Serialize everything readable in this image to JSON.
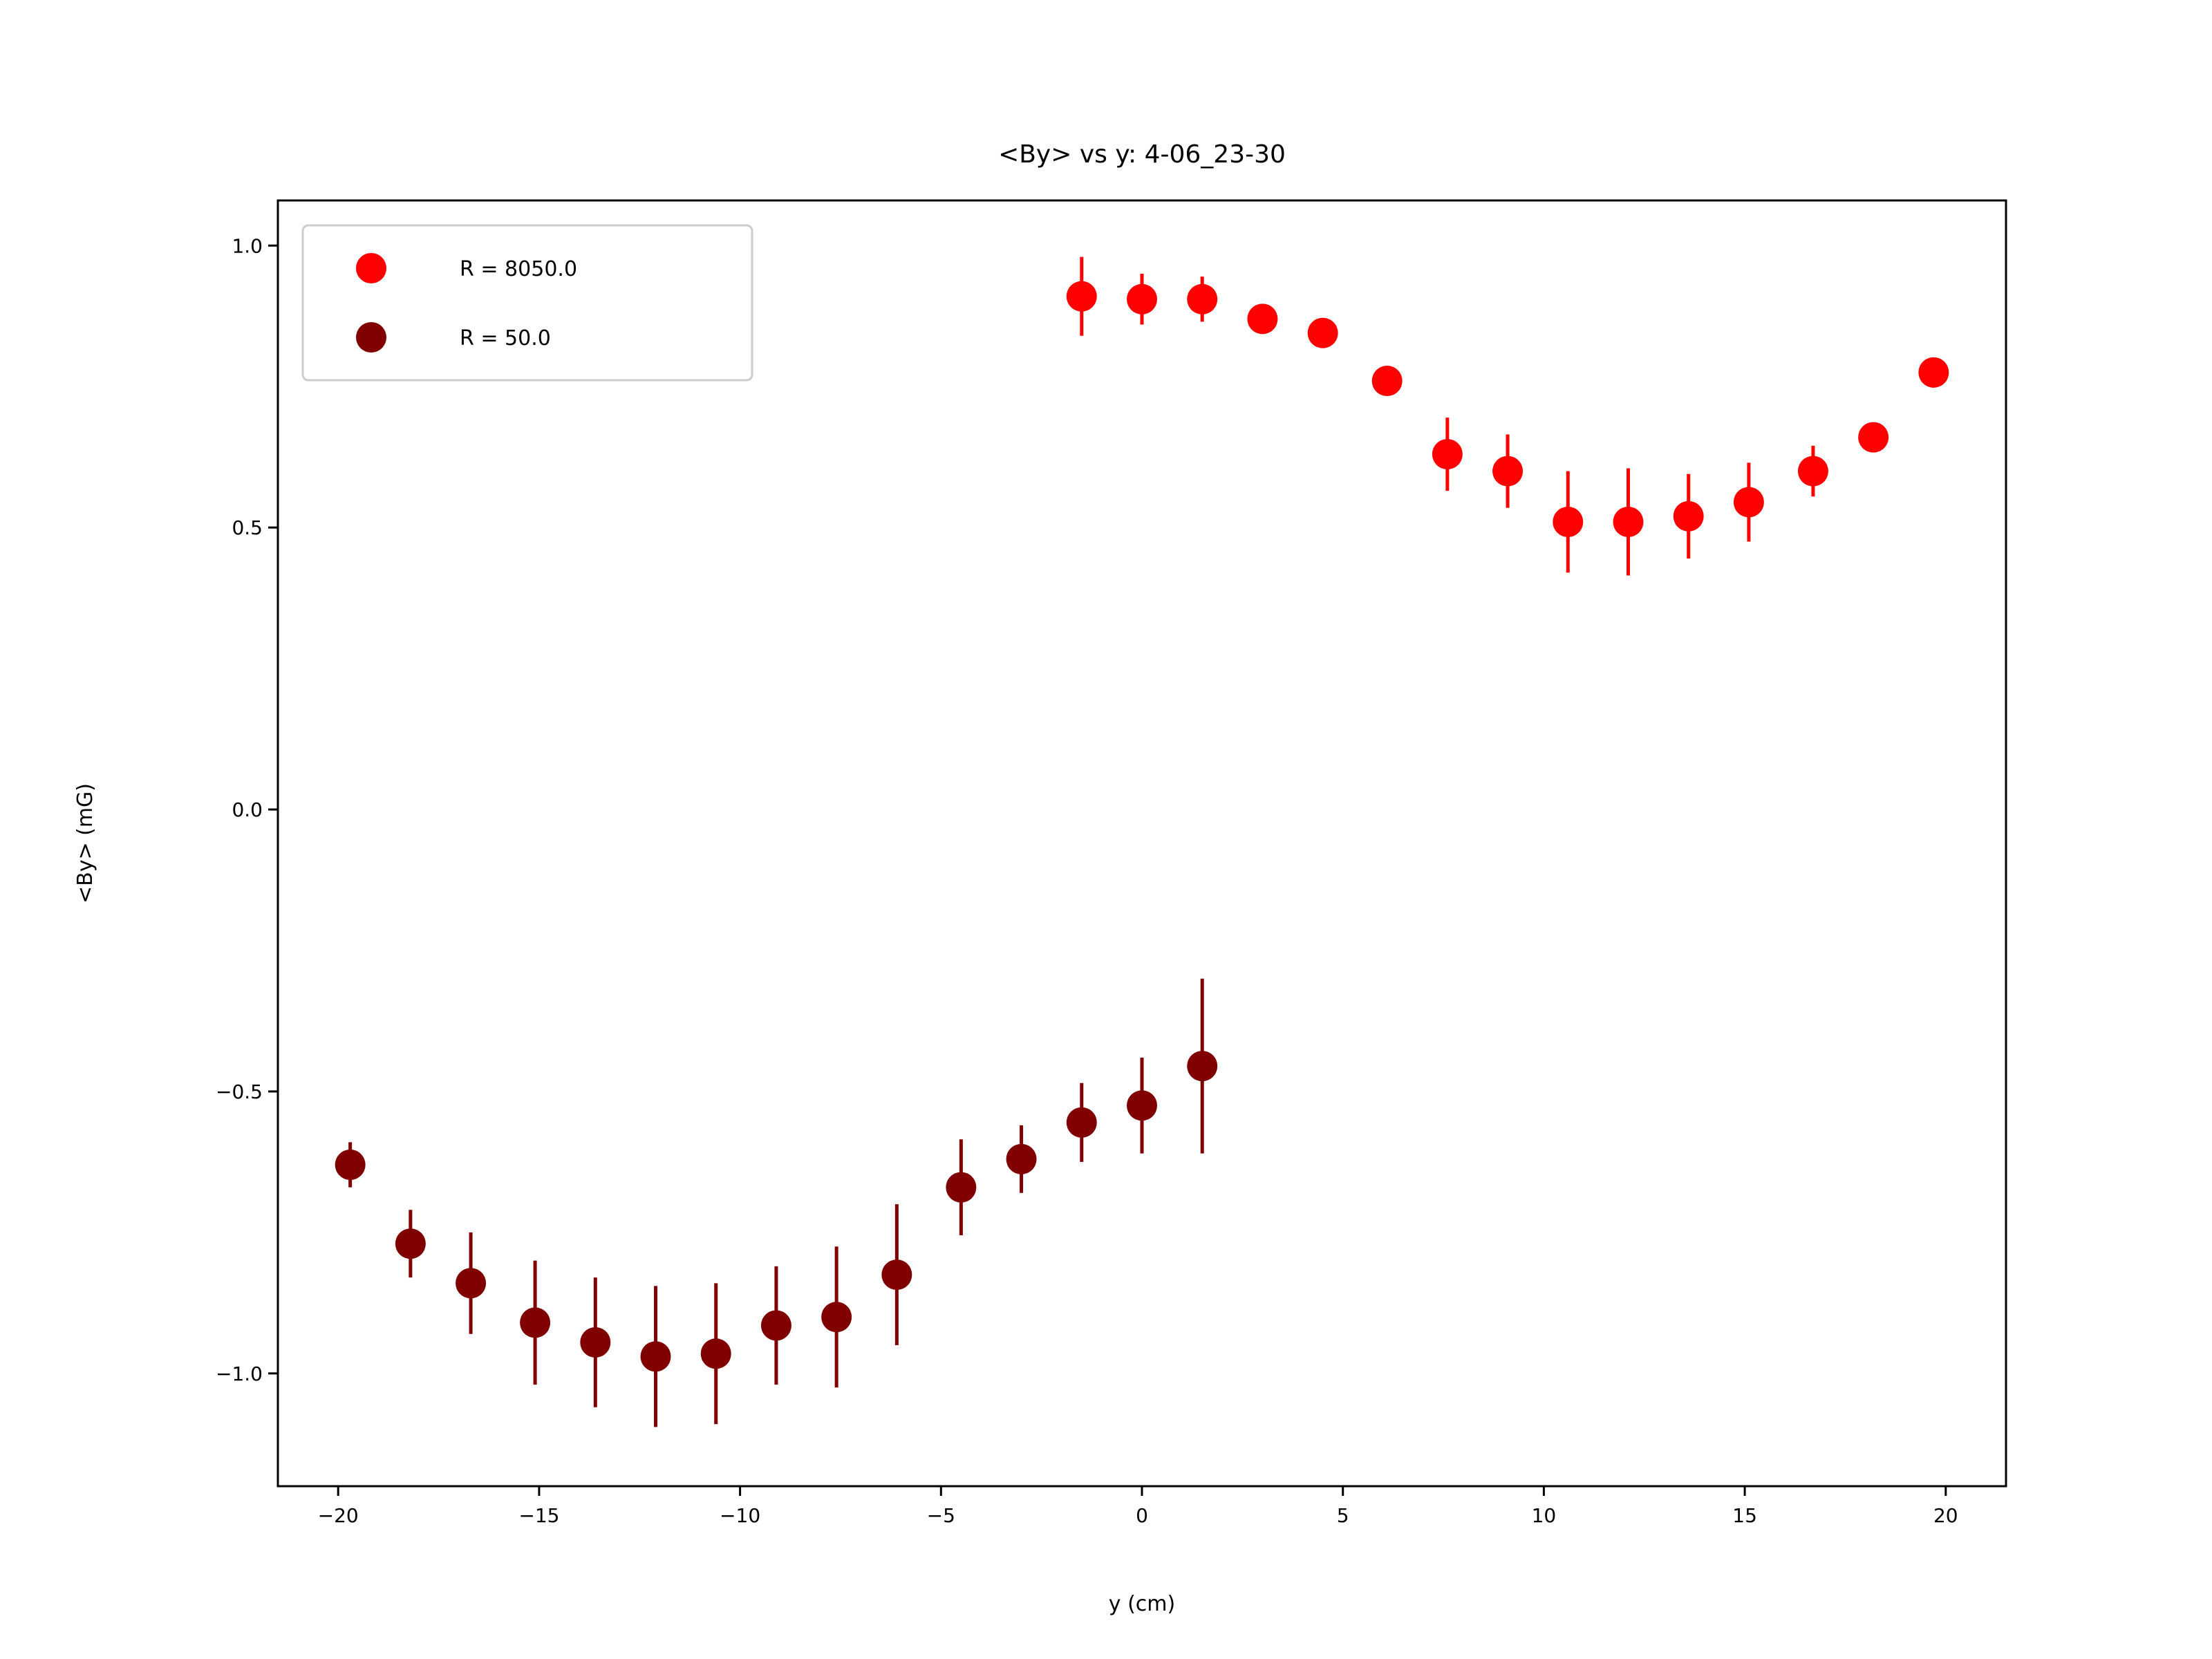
{
  "chart_data": {
    "type": "scatter",
    "title": "<By> vs y: 4-06_23-30",
    "xlabel": "y (cm)",
    "ylabel": "<By> (mG)",
    "xlim": [
      -21.5,
      21.5
    ],
    "ylim": [
      -1.2,
      1.08
    ],
    "xticks": [
      -20,
      -15,
      -10,
      -5,
      0,
      5,
      10,
      15,
      20
    ],
    "xtick_labels": [
      "−20",
      "−15",
      "−10",
      "−5",
      "0",
      "5",
      "10",
      "15",
      "20"
    ],
    "yticks": [
      1.0,
      0.5,
      0.0,
      -0.5,
      -1.0
    ],
    "ytick_labels": [
      "1.0",
      "0.5",
      "0.0",
      "−0.5",
      "−1.0"
    ],
    "grid": false,
    "legend_position": "top-left",
    "series": [
      {
        "name": "R = 8050.0",
        "color": "#ff0000",
        "x": [
          -1.5,
          0.0,
          1.5,
          3.0,
          4.5,
          6.1,
          7.6,
          9.1,
          10.6,
          12.1,
          13.6,
          15.1,
          16.7,
          18.2,
          19.7
        ],
        "y": [
          0.91,
          0.905,
          0.905,
          0.87,
          0.845,
          0.76,
          0.63,
          0.6,
          0.51,
          0.51,
          0.52,
          0.545,
          0.6,
          0.66,
          0.775
        ],
        "err": [
          0.07,
          0.045,
          0.04,
          0.015,
          0.015,
          0.015,
          0.065,
          0.065,
          0.09,
          0.095,
          0.075,
          0.07,
          0.045,
          0.015,
          0.01
        ]
      },
      {
        "name": "R = 50.0",
        "color": "#800000",
        "x": [
          -19.7,
          -18.2,
          -16.7,
          -15.1,
          -13.6,
          -12.1,
          -10.6,
          -9.1,
          -7.6,
          -6.1,
          -4.5,
          -3.0,
          -1.5,
          0.0,
          1.5
        ],
        "y": [
          -0.63,
          -0.77,
          -0.84,
          -0.91,
          -0.945,
          -0.97,
          -0.965,
          -0.915,
          -0.9,
          -0.825,
          -0.67,
          -0.62,
          -0.555,
          -0.525,
          -0.455
        ],
        "err": [
          0.04,
          0.06,
          0.09,
          0.11,
          0.115,
          0.125,
          0.125,
          0.105,
          0.125,
          0.125,
          0.085,
          0.06,
          0.07,
          0.085,
          0.155
        ]
      }
    ]
  }
}
